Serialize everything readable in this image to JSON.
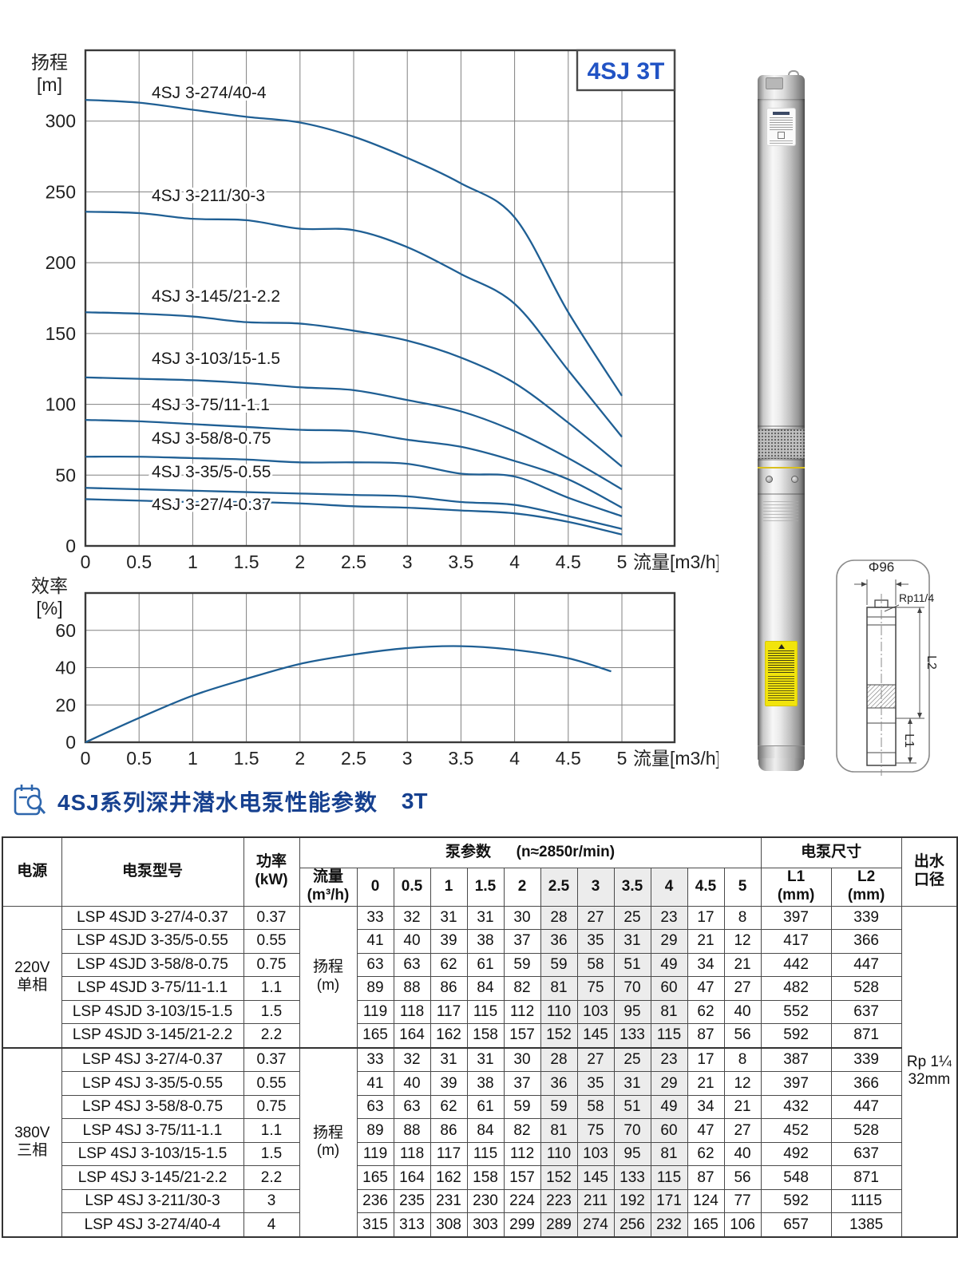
{
  "chart_data": [
    {
      "type": "line",
      "title": "4SJ 3T",
      "xlabel": "流量[m3/h]",
      "ylabel_lines": [
        "扬程",
        "[m]"
      ],
      "xlim": [
        0,
        5.45
      ],
      "ylim": [
        0,
        350
      ],
      "grid": true,
      "legend_position": "inline-labels",
      "xticks": [
        "0",
        "0.5",
        "1",
        "1.5",
        "2",
        "2.5",
        "3",
        "3.5",
        "4",
        "4.5",
        "5"
      ],
      "yticks": [
        0,
        50,
        100,
        150,
        200,
        250,
        300
      ],
      "x": [
        0,
        0.5,
        1,
        1.5,
        2,
        2.5,
        3,
        3.5,
        4,
        4.5,
        5
      ],
      "line_color": "#1f5f94",
      "series": [
        {
          "name": "4SJ 3-274/40-4",
          "values": [
            315,
            313,
            308,
            303,
            299,
            289,
            274,
            256,
            232,
            165,
            106
          ]
        },
        {
          "name": "4SJ 3-211/30-3",
          "values": [
            236,
            235,
            231,
            230,
            224,
            223,
            211,
            192,
            171,
            124,
            77
          ]
        },
        {
          "name": "4SJ 3-145/21-2.2",
          "values": [
            165,
            164,
            162,
            158,
            157,
            152,
            145,
            133,
            115,
            87,
            56
          ]
        },
        {
          "name": "4SJ 3-103/15-1.5",
          "values": [
            119,
            118,
            117,
            115,
            112,
            110,
            103,
            95,
            81,
            62,
            40
          ]
        },
        {
          "name": "4SJ 3-75/11-1.1",
          "values": [
            89,
            88,
            86,
            84,
            82,
            81,
            75,
            70,
            60,
            47,
            27
          ]
        },
        {
          "name": "4SJ 3-58/8-0.75",
          "values": [
            63,
            63,
            62,
            61,
            59,
            59,
            58,
            51,
            49,
            34,
            21
          ]
        },
        {
          "name": "4SJ 3-35/5-0.55",
          "values": [
            41,
            40,
            39,
            38,
            37,
            36,
            35,
            31,
            29,
            21,
            12
          ]
        },
        {
          "name": "4SJ 3-27/4-0.37",
          "values": [
            33,
            32,
            31,
            31,
            30,
            28,
            27,
            25,
            23,
            17,
            8
          ]
        }
      ]
    },
    {
      "type": "line",
      "title": "",
      "xlabel": "流量[m3/h]",
      "ylabel_lines": [
        "效率",
        "[%]"
      ],
      "xlim": [
        0,
        5.45
      ],
      "ylim": [
        0,
        80
      ],
      "grid": true,
      "xticks": [
        "0",
        "0.5",
        "1",
        "1.5",
        "2",
        "2.5",
        "3",
        "3.5",
        "4",
        "4.5",
        "5"
      ],
      "yticks": [
        0,
        20,
        40,
        60
      ],
      "x": [
        0,
        0.5,
        1,
        1.5,
        2,
        2.5,
        3,
        3.5,
        4,
        4.5,
        4.9
      ],
      "line_color": "#1f5f94",
      "series": [
        {
          "name": "效率",
          "values": [
            0,
            13,
            25,
            34,
            42,
            47,
            50.5,
            51.5,
            49.5,
            45,
            38
          ]
        }
      ]
    }
  ],
  "section": {
    "title": "4SJ系列深井潜水电泵性能参数",
    "badge": "3T"
  },
  "diagram": {
    "dia_label": "Φ96",
    "thread_label": "Rp11/4",
    "l1_label": "L1",
    "l2_label": "L2"
  },
  "table": {
    "col_power": "电源",
    "col_model": "电泵型号",
    "col_kw": [
      "功率",
      "(kW)"
    ],
    "pump_params": "泵参数",
    "speed": "(n≈2850r/min)",
    "dims": "电泵尺寸",
    "flow_header": [
      "流量",
      "(m³/h)"
    ],
    "l1_header": [
      "L1",
      "(mm)"
    ],
    "l2_header": [
      "L2",
      "(mm)"
    ],
    "outlet_header": [
      "出水",
      "口径"
    ],
    "flow_cols": [
      "0",
      "0.5",
      "1",
      "1.5",
      "2",
      "2.5",
      "3",
      "3.5",
      "4",
      "4.5",
      "5"
    ],
    "shaded_flow_indices": [
      5,
      6,
      7,
      8
    ],
    "head_row_label": [
      "扬程",
      "(m)"
    ],
    "outlet_value": [
      "Rp 1¼",
      "32mm"
    ],
    "groups": [
      {
        "supply": [
          "220V",
          "单相"
        ],
        "rows": [
          {
            "model": "LSP 4SJD 3-27/4-0.37",
            "kw": "0.37",
            "heads": [
              33,
              32,
              31,
              31,
              30,
              28,
              27,
              25,
              23,
              17,
              8
            ],
            "l1": "397",
            "l2": "339"
          },
          {
            "model": "LSP 4SJD 3-35/5-0.55",
            "kw": "0.55",
            "heads": [
              41,
              40,
              39,
              38,
              37,
              36,
              35,
              31,
              29,
              21,
              12
            ],
            "l1": "417",
            "l2": "366"
          },
          {
            "model": "LSP 4SJD 3-58/8-0.75",
            "kw": "0.75",
            "heads": [
              63,
              63,
              62,
              61,
              59,
              59,
              58,
              51,
              49,
              34,
              21
            ],
            "l1": "442",
            "l2": "447"
          },
          {
            "model": "LSP 4SJD 3-75/11-1.1",
            "kw": "1.1",
            "heads": [
              89,
              88,
              86,
              84,
              82,
              81,
              75,
              70,
              60,
              47,
              27
            ],
            "l1": "482",
            "l2": "528"
          },
          {
            "model": "LSP 4SJD 3-103/15-1.5",
            "kw": "1.5",
            "heads": [
              119,
              118,
              117,
              115,
              112,
              110,
              103,
              95,
              81,
              62,
              40
            ],
            "l1": "552",
            "l2": "637"
          },
          {
            "model": "LSP 4SJD 3-145/21-2.2",
            "kw": "2.2",
            "heads": [
              165,
              164,
              162,
              158,
              157,
              152,
              145,
              133,
              115,
              87,
              56
            ],
            "l1": "592",
            "l2": "871"
          }
        ]
      },
      {
        "supply": [
          "380V",
          "三相"
        ],
        "rows": [
          {
            "model": "LSP 4SJ 3-27/4-0.37",
            "kw": "0.37",
            "heads": [
              33,
              32,
              31,
              31,
              30,
              28,
              27,
              25,
              23,
              17,
              8
            ],
            "l1": "387",
            "l2": "339"
          },
          {
            "model": "LSP 4SJ 3-35/5-0.55",
            "kw": "0.55",
            "heads": [
              41,
              40,
              39,
              38,
              37,
              36,
              35,
              31,
              29,
              21,
              12
            ],
            "l1": "397",
            "l2": "366"
          },
          {
            "model": "LSP 4SJ 3-58/8-0.75",
            "kw": "0.75",
            "heads": [
              63,
              63,
              62,
              61,
              59,
              59,
              58,
              51,
              49,
              34,
              21
            ],
            "l1": "432",
            "l2": "447"
          },
          {
            "model": "LSP 4SJ 3-75/11-1.1",
            "kw": "1.1",
            "heads": [
              89,
              88,
              86,
              84,
              82,
              81,
              75,
              70,
              60,
              47,
              27
            ],
            "l1": "452",
            "l2": "528"
          },
          {
            "model": "LSP 4SJ 3-103/15-1.5",
            "kw": "1.5",
            "heads": [
              119,
              118,
              117,
              115,
              112,
              110,
              103,
              95,
              81,
              62,
              40
            ],
            "l1": "492",
            "l2": "637"
          },
          {
            "model": "LSP 4SJ 3-145/21-2.2",
            "kw": "2.2",
            "heads": [
              165,
              164,
              162,
              158,
              157,
              152,
              145,
              133,
              115,
              87,
              56
            ],
            "l1": "548",
            "l2": "871"
          },
          {
            "model": "LSP 4SJ 3-211/30-3",
            "kw": "3",
            "heads": [
              236,
              235,
              231,
              230,
              224,
              223,
              211,
              192,
              171,
              124,
              77
            ],
            "l1": "592",
            "l2": "1115"
          },
          {
            "model": "LSP 4SJ 3-274/40-4",
            "kw": "4",
            "heads": [
              315,
              313,
              308,
              303,
              299,
              289,
              274,
              256,
              232,
              165,
              106
            ],
            "l1": "657",
            "l2": "1385"
          }
        ]
      }
    ]
  }
}
